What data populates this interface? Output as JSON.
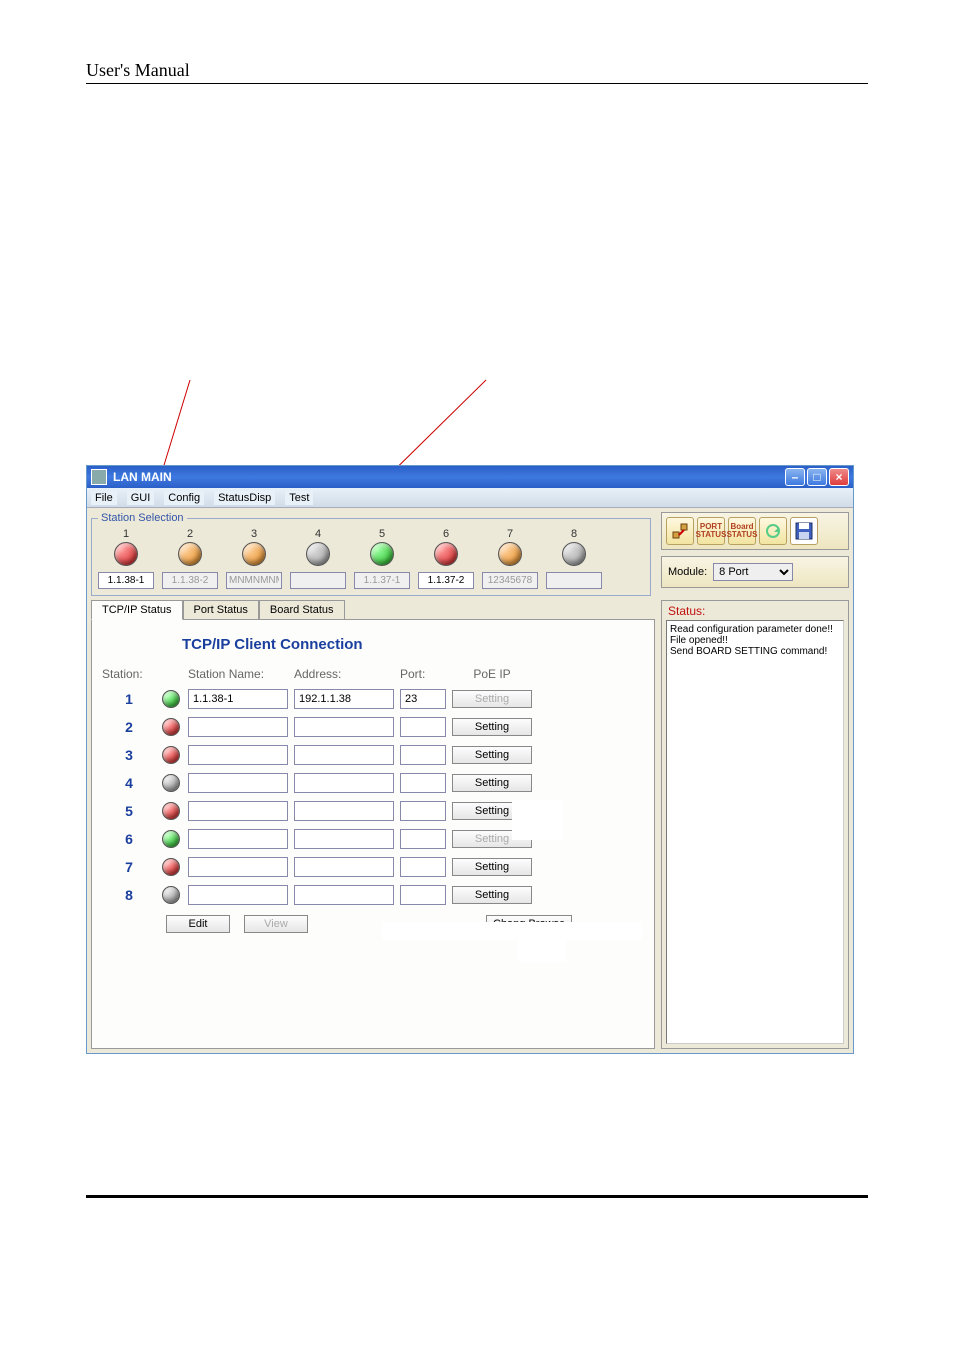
{
  "page": {
    "header": "User's Manual"
  },
  "window": {
    "title": "LAN MAIN",
    "menubar": [
      "File",
      "GUI",
      "Config",
      "StatusDisp",
      "Test"
    ],
    "min_label": "–",
    "max_label": "□",
    "close_label": "×"
  },
  "station_selection": {
    "legend": "Station Selection",
    "stations": [
      {
        "num": "1",
        "led": "red",
        "input": "1.1.38-1",
        "enabled": true
      },
      {
        "num": "2",
        "led": "orange",
        "input": "1.1.38-2",
        "enabled": false
      },
      {
        "num": "3",
        "led": "orange",
        "input": "MNMNMNMN",
        "enabled": false
      },
      {
        "num": "4",
        "led": "gray",
        "input": "",
        "enabled": false
      },
      {
        "num": "5",
        "led": "green",
        "input": "1.1.37-1",
        "enabled": false
      },
      {
        "num": "6",
        "led": "red",
        "input": "1.1.37-2",
        "enabled": true
      },
      {
        "num": "7",
        "led": "orange",
        "input": "12345678",
        "enabled": false
      },
      {
        "num": "8",
        "led": "gray",
        "input": "",
        "enabled": false
      }
    ]
  },
  "tabs": {
    "items": [
      "TCP/IP Status",
      "Port Status",
      "Board Status"
    ],
    "active": 0
  },
  "tcpip": {
    "title": "TCP/IP Client Connection",
    "headers": {
      "station": "Station:",
      "name": "Station Name:",
      "address": "Address:",
      "port": "Port:",
      "poe": "PoE IP"
    },
    "rows": [
      {
        "num": "1",
        "led": "green",
        "name": "1.1.38-1",
        "address": "192.1.1.38",
        "port": "23",
        "btn": "Setting",
        "btn_enabled": false
      },
      {
        "num": "2",
        "led": "red",
        "name": "",
        "address": "",
        "port": "",
        "btn": "Setting",
        "btn_enabled": true
      },
      {
        "num": "3",
        "led": "red",
        "name": "",
        "address": "",
        "port": "",
        "btn": "Setting",
        "btn_enabled": true
      },
      {
        "num": "4",
        "led": "gray",
        "name": "",
        "address": "",
        "port": "",
        "btn": "Setting",
        "btn_enabled": true
      },
      {
        "num": "5",
        "led": "red",
        "name": "",
        "address": "",
        "port": "",
        "btn": "Setting",
        "btn_enabled": true
      },
      {
        "num": "6",
        "led": "green",
        "name": "",
        "address": "",
        "port": "",
        "btn": "Setting",
        "btn_enabled": false
      },
      {
        "num": "7",
        "led": "red",
        "name": "",
        "address": "",
        "port": "",
        "btn": "Setting",
        "btn_enabled": true
      },
      {
        "num": "8",
        "led": "gray",
        "name": "",
        "address": "",
        "port": "",
        "btn": "Setting",
        "btn_enabled": true
      }
    ],
    "edit_btn": "Edit",
    "view_btn": "View",
    "chang_btn": "Chang Browse"
  },
  "toolbar": {
    "items": [
      {
        "name": "connect-icon",
        "label": ""
      },
      {
        "name": "port-status-icon",
        "label": "PORT STATUS"
      },
      {
        "name": "board-status-icon",
        "label": "Board STATUS"
      },
      {
        "name": "refresh-icon",
        "label": ""
      },
      {
        "name": "save-icon",
        "label": ""
      }
    ]
  },
  "module": {
    "label": "Module:",
    "value": "8 Port"
  },
  "status": {
    "label": "Status:",
    "text": "Read configuration parameter done!!\nFile opened!!\nSend BOARD SETTING command!"
  },
  "colors": {
    "titlebar": "#2b5fc8",
    "accent_text": "#1a3f9e",
    "status_label": "#c01010",
    "bg_panel": "#ece9d8"
  }
}
